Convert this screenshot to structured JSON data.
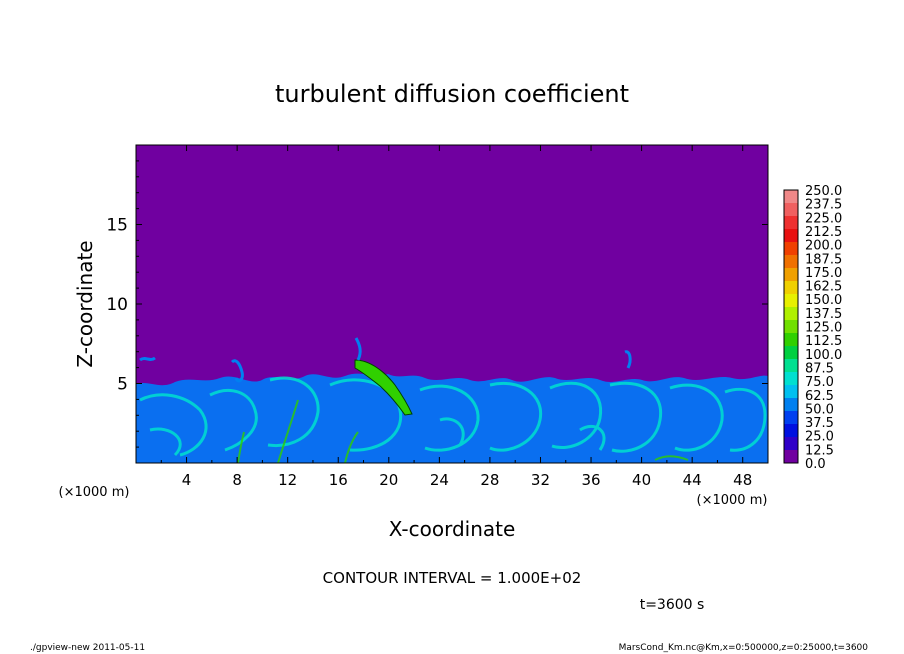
{
  "chart_data": {
    "type": "heatmap",
    "title": "turbulent diffusion coefficient",
    "xlabel": "X-coordinate",
    "ylabel": "Z-coordinate",
    "x_unit_label": "(×1000 m)",
    "y_unit_label": "(×1000 m)",
    "xlim": [
      0,
      50
    ],
    "ylim": [
      0,
      20
    ],
    "x_ticks": [
      4,
      8,
      12,
      16,
      20,
      24,
      28,
      32,
      36,
      40,
      44,
      48
    ],
    "y_ticks": [
      5,
      10,
      15
    ],
    "colorbar_labels": [
      "250.0",
      "237.5",
      "225.0",
      "212.5",
      "200.0",
      "187.5",
      "175.0",
      "162.5",
      "150.0",
      "137.5",
      "125.0",
      "112.5",
      "100.0",
      "87.5",
      "75.0",
      "62.5",
      "50.0",
      "37.5",
      "25.0",
      "12.5",
      "0.0"
    ],
    "colorbar_colors": [
      "#f08888",
      "#f06060",
      "#ee3030",
      "#e81010",
      "#f04000",
      "#f07000",
      "#f0a000",
      "#f0d000",
      "#e8f000",
      "#b0f000",
      "#70e000",
      "#30d000",
      "#00d040",
      "#00e090",
      "#00e0d0",
      "#00c0f0",
      "#0080f0",
      "#0040f0",
      "#0010e0",
      "#3000c8",
      "#7000a0"
    ],
    "background_color": "#7000a0",
    "interval_text": "CONTOUR INTERVAL = 1.000E+02",
    "time_text": "t=3600 s",
    "footer_left": "./gpview-new   2011-05-11",
    "footer_right": "MarsCond_Km.nc@Km,x=0:500000,z=0:25000,t=3600"
  }
}
